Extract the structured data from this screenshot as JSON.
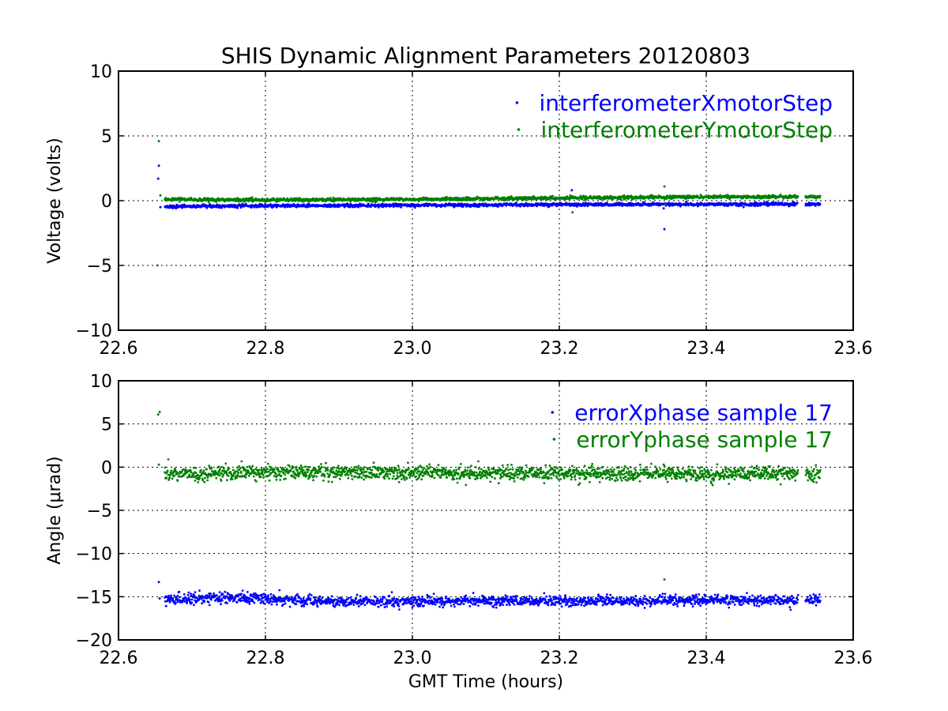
{
  "figure_title": "SHIS Dynamic Alignment Parameters 20120803",
  "colors": {
    "series_x": "#0000ff",
    "series_y": "#008000",
    "axes": "#000000",
    "background": "#ffffff"
  },
  "chart_data": [
    {
      "type": "scatter",
      "title": "SHIS Dynamic Alignment Parameters 20120803",
      "xlabel": "",
      "ylabel": "Voltage (volts)",
      "xlim": [
        22.6,
        23.6
      ],
      "ylim": [
        -10,
        10
      ],
      "xticks": [
        "22.6",
        "22.8",
        "23.0",
        "23.2",
        "23.4",
        "23.6"
      ],
      "yticks": [
        "−10",
        "−5",
        "0",
        "5",
        "10"
      ],
      "grid": true,
      "legend_position": "top-right",
      "series": [
        {
          "name": "interferometerXmotorStep",
          "color": "#0000ff",
          "baseline": [
            [
              22.663,
              -0.45
            ],
            [
              22.8,
              -0.4
            ],
            [
              23.0,
              -0.35
            ],
            [
              23.2,
              -0.3
            ],
            [
              23.4,
              -0.28
            ],
            [
              23.555,
              -0.27
            ]
          ],
          "noise": 0.06,
          "gaps": [
            [
              23.525,
              23.535
            ]
          ],
          "outliers": [
            [
              22.655,
              2.7
            ],
            [
              22.654,
              1.7
            ],
            [
              22.657,
              -0.5
            ],
            [
              23.217,
              0.8
            ],
            [
              23.215,
              -0.4
            ],
            [
              23.343,
              -2.2
            ],
            [
              23.342,
              -0.6
            ]
          ]
        },
        {
          "name": "interferometerYmotorStep",
          "color": "#008000",
          "baseline": [
            [
              22.663,
              0.1
            ],
            [
              22.8,
              0.05
            ],
            [
              23.0,
              0.1
            ],
            [
              23.2,
              0.2
            ],
            [
              23.4,
              0.3
            ],
            [
              23.555,
              0.3
            ]
          ],
          "noise": 0.06,
          "gaps": [
            [
              23.525,
              23.535
            ]
          ],
          "outliers": [
            [
              22.655,
              4.6
            ],
            [
              22.653,
              -5.0
            ],
            [
              22.657,
              0.4
            ],
            [
              23.218,
              -0.9
            ],
            [
              23.215,
              0.4
            ],
            [
              23.343,
              1.1
            ],
            [
              23.344,
              -0.3
            ]
          ]
        }
      ]
    },
    {
      "type": "scatter",
      "title": "",
      "xlabel": "GMT Time (hours)",
      "ylabel": "Angle (μrad)",
      "xlim": [
        22.6,
        23.6
      ],
      "ylim": [
        -20,
        10
      ],
      "xticks": [
        "22.6",
        "22.8",
        "23.0",
        "23.2",
        "23.4",
        "23.6"
      ],
      "yticks": [
        "−20",
        "−15",
        "−10",
        "−5",
        "0",
        "5",
        "10"
      ],
      "grid": true,
      "legend_position": "top-right",
      "series": [
        {
          "name": "errorXphase sample 17",
          "color": "#0000ff",
          "baseline": [
            [
              22.663,
              -15.3
            ],
            [
              22.75,
              -15.1
            ],
            [
              22.8,
              -15.3
            ],
            [
              22.9,
              -15.6
            ],
            [
              23.0,
              -15.5
            ],
            [
              23.2,
              -15.5
            ],
            [
              23.4,
              -15.4
            ],
            [
              23.555,
              -15.4
            ]
          ],
          "noise": 0.3,
          "gaps": [
            [
              23.525,
              23.535
            ]
          ],
          "outliers": [
            [
              22.655,
              -13.3
            ],
            [
              22.656,
              -15.2
            ],
            [
              23.343,
              -15.3
            ]
          ]
        },
        {
          "name": "errorYphase sample 17",
          "color": "#008000",
          "baseline": [
            [
              22.663,
              -0.8
            ],
            [
              22.75,
              -0.7
            ],
            [
              22.8,
              -0.5
            ],
            [
              22.9,
              -0.6
            ],
            [
              23.0,
              -0.7
            ],
            [
              23.2,
              -0.7
            ],
            [
              23.4,
              -0.8
            ],
            [
              23.555,
              -0.8
            ]
          ],
          "noise": 0.4,
          "gaps": [
            [
              23.525,
              23.535
            ]
          ],
          "outliers": [
            [
              22.656,
              6.4
            ],
            [
              22.654,
              6.1
            ],
            [
              22.655,
              0.3
            ],
            [
              23.342,
              0.3
            ],
            [
              23.343,
              -13.0
            ]
          ]
        }
      ]
    }
  ]
}
